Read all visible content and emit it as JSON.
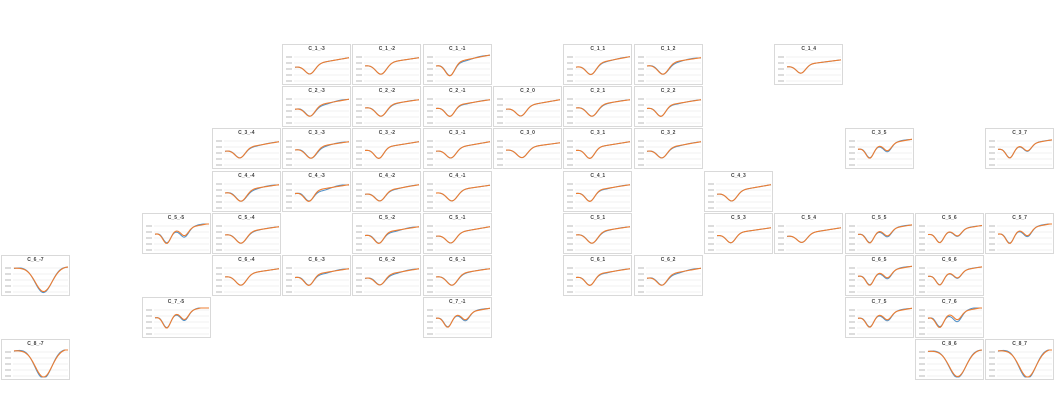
{
  "colors": {
    "series_a": "#4f8fc7",
    "series_b": "#ed7d31",
    "grid": "#e3e3e3",
    "border": "#d9d9d9",
    "tick": "#8c8c8c"
  },
  "chart_data": [
    {
      "type": "line",
      "title": "C_1_-3",
      "row": 1,
      "col": -3,
      "shape": 0,
      "depth": 1.0,
      "offset": 0.0
    },
    {
      "type": "line",
      "title": "C_1_-2",
      "row": 1,
      "col": -2,
      "shape": 1,
      "depth": 1.0,
      "offset": 0.0
    },
    {
      "type": "line",
      "title": "C_1_-1",
      "row": 1,
      "col": -1,
      "shape": 2,
      "depth": 1.25,
      "offset": 0.1
    },
    {
      "type": "line",
      "title": "C_1_1",
      "row": 1,
      "col": 1,
      "shape": 0,
      "depth": 1.1,
      "offset": 0.05
    },
    {
      "type": "line",
      "title": "C_1_2",
      "row": 1,
      "col": 2,
      "shape": 1,
      "depth": 1.0,
      "offset": 0.1
    },
    {
      "type": "line",
      "title": "C_1_4",
      "row": 1,
      "col": 4,
      "shape": 2,
      "depth": 0.8,
      "offset": 0.0
    },
    {
      "type": "line",
      "title": "C_2_-3",
      "row": 2,
      "col": -3,
      "shape": 0,
      "depth": 1.05,
      "offset": 0.1
    },
    {
      "type": "line",
      "title": "C_2_-2",
      "row": 2,
      "col": -2,
      "shape": 1,
      "depth": 1.0,
      "offset": 0.05
    },
    {
      "type": "line",
      "title": "C_2_-1",
      "row": 2,
      "col": -1,
      "shape": 2,
      "depth": 1.0,
      "offset": 0.05
    },
    {
      "type": "line",
      "title": "C_2_0",
      "row": 2,
      "col": 0,
      "shape": 0,
      "depth": 1.0,
      "offset": 0.0
    },
    {
      "type": "line",
      "title": "C_2_1",
      "row": 2,
      "col": 1,
      "shape": 1,
      "depth": 1.0,
      "offset": 0.05
    },
    {
      "type": "line",
      "title": "C_2_2",
      "row": 2,
      "col": 2,
      "shape": 2,
      "depth": 1.0,
      "offset": 0.05
    },
    {
      "type": "line",
      "title": "C_3_-4",
      "row": 3,
      "col": -4,
      "shape": 0,
      "depth": 1.0,
      "offset": 0.05
    },
    {
      "type": "line",
      "title": "C_3_-3",
      "row": 3,
      "col": -3,
      "shape": 1,
      "depth": 1.0,
      "offset": 0.1
    },
    {
      "type": "line",
      "title": "C_3_-2",
      "row": 3,
      "col": -2,
      "shape": 2,
      "depth": 1.0,
      "offset": 0.0
    },
    {
      "type": "line",
      "title": "C_3_-1",
      "row": 3,
      "col": -1,
      "shape": 0,
      "depth": 1.0,
      "offset": 0.0
    },
    {
      "type": "line",
      "title": "C_3_0",
      "row": 3,
      "col": 0,
      "shape": 1,
      "depth": 0.9,
      "offset": 0.0
    },
    {
      "type": "line",
      "title": "C_3_1",
      "row": 3,
      "col": 1,
      "shape": 2,
      "depth": 1.0,
      "offset": 0.0
    },
    {
      "type": "line",
      "title": "C_3_2",
      "row": 3,
      "col": 2,
      "shape": 0,
      "depth": 1.0,
      "offset": 0.05
    },
    {
      "type": "line",
      "title": "C_3_5",
      "row": 3,
      "col": 5,
      "shape": 3,
      "depth": 1.05,
      "offset": 0.1
    },
    {
      "type": "line",
      "title": "C_3_7",
      "row": 3,
      "col": 7,
      "shape": 3,
      "depth": 1.0,
      "offset": 0.05
    },
    {
      "type": "line",
      "title": "C_4_-4",
      "row": 4,
      "col": -4,
      "shape": 1,
      "depth": 1.0,
      "offset": 0.1
    },
    {
      "type": "line",
      "title": "C_4_-3",
      "row": 4,
      "col": -3,
      "shape": 2,
      "depth": 1.0,
      "offset": 0.15
    },
    {
      "type": "line",
      "title": "C_4_-2",
      "row": 4,
      "col": -2,
      "shape": 0,
      "depth": 1.0,
      "offset": 0.05
    },
    {
      "type": "line",
      "title": "C_4_-1",
      "row": 4,
      "col": -1,
      "shape": 1,
      "depth": 0.95,
      "offset": 0.0
    },
    {
      "type": "line",
      "title": "C_4_1",
      "row": 4,
      "col": 1,
      "shape": 2,
      "depth": 1.0,
      "offset": 0.05
    },
    {
      "type": "line",
      "title": "C_4_3",
      "row": 4,
      "col": 3,
      "shape": 0,
      "depth": 1.0,
      "offset": 0.0
    },
    {
      "type": "line",
      "title": "C_5_-5",
      "row": 5,
      "col": -5,
      "shape": 3,
      "depth": 1.1,
      "offset": 0.15
    },
    {
      "type": "line",
      "title": "C_5_-4",
      "row": 5,
      "col": -4,
      "shape": 1,
      "depth": 1.0,
      "offset": 0.05
    },
    {
      "type": "line",
      "title": "C_5_-2",
      "row": 5,
      "col": -2,
      "shape": 2,
      "depth": 1.0,
      "offset": 0.1
    },
    {
      "type": "line",
      "title": "C_5_-1",
      "row": 5,
      "col": -1,
      "shape": 0,
      "depth": 1.0,
      "offset": 0.0
    },
    {
      "type": "line",
      "title": "C_5_1",
      "row": 5,
      "col": 1,
      "shape": 1,
      "depth": 1.0,
      "offset": 0.05
    },
    {
      "type": "line",
      "title": "C_5_3",
      "row": 5,
      "col": 3,
      "shape": 2,
      "depth": 0.9,
      "offset": 0.0
    },
    {
      "type": "line",
      "title": "C_5_4",
      "row": 5,
      "col": 4,
      "shape": 0,
      "depth": 0.9,
      "offset": 0.0
    },
    {
      "type": "line",
      "title": "C_5_5",
      "row": 5,
      "col": 5,
      "shape": 3,
      "depth": 1.0,
      "offset": 0.1
    },
    {
      "type": "line",
      "title": "C_5_6",
      "row": 5,
      "col": 6,
      "shape": 3,
      "depth": 0.95,
      "offset": 0.05
    },
    {
      "type": "line",
      "title": "C_5_7",
      "row": 5,
      "col": 7,
      "shape": 3,
      "depth": 1.1,
      "offset": 0.1
    },
    {
      "type": "line",
      "title": "C_6_-7",
      "row": 6,
      "col": -7,
      "shape": 4,
      "depth": 1.2,
      "offset": 0.1
    },
    {
      "type": "line",
      "title": "C_6_-4",
      "row": 6,
      "col": -4,
      "shape": 1,
      "depth": 1.0,
      "offset": 0.0
    },
    {
      "type": "line",
      "title": "C_6_-3",
      "row": 6,
      "col": -3,
      "shape": 2,
      "depth": 1.0,
      "offset": 0.1
    },
    {
      "type": "line",
      "title": "C_6_-2",
      "row": 6,
      "col": -2,
      "shape": 0,
      "depth": 1.0,
      "offset": 0.1
    },
    {
      "type": "line",
      "title": "C_6_-1",
      "row": 6,
      "col": -1,
      "shape": 1,
      "depth": 1.0,
      "offset": 0.05
    },
    {
      "type": "line",
      "title": "C_6_1",
      "row": 6,
      "col": 1,
      "shape": 2,
      "depth": 1.0,
      "offset": 0.05
    },
    {
      "type": "line",
      "title": "C_6_2",
      "row": 6,
      "col": 2,
      "shape": 0,
      "depth": 1.05,
      "offset": 0.1
    },
    {
      "type": "line",
      "title": "C_6_5",
      "row": 6,
      "col": 5,
      "shape": 3,
      "depth": 1.05,
      "offset": 0.1
    },
    {
      "type": "line",
      "title": "C_6_6",
      "row": 6,
      "col": 6,
      "shape": 3,
      "depth": 1.0,
      "offset": 0.05
    },
    {
      "type": "line",
      "title": "C_7_-5",
      "row": 7,
      "col": -5,
      "shape": 3,
      "depth": 1.2,
      "offset": 0.1
    },
    {
      "type": "line",
      "title": "C_7_-1",
      "row": 7,
      "col": -1,
      "shape": 3,
      "depth": 1.05,
      "offset": 0.1
    },
    {
      "type": "line",
      "title": "C_7_5",
      "row": 7,
      "col": 5,
      "shape": 3,
      "depth": 1.05,
      "offset": 0.1
    },
    {
      "type": "line",
      "title": "C_7_6",
      "row": 7,
      "col": 6,
      "shape": 3,
      "depth": 1.1,
      "offset": 0.2
    },
    {
      "type": "line",
      "title": "C_8_-7",
      "row": 8,
      "col": -7,
      "shape": 4,
      "depth": 1.35,
      "offset": 0.15
    },
    {
      "type": "line",
      "title": "C_8_6",
      "row": 8,
      "col": 6,
      "shape": 4,
      "depth": 1.3,
      "offset": 0.1
    },
    {
      "type": "line",
      "title": "C_8_7",
      "row": 8,
      "col": 7,
      "shape": 4,
      "depth": 1.35,
      "offset": 0.15
    }
  ]
}
